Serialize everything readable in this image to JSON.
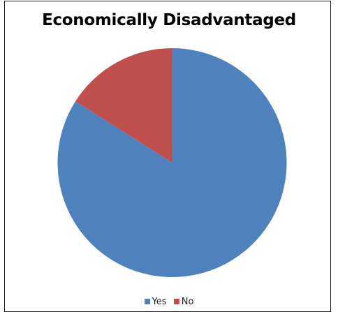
{
  "chart_data": {
    "type": "pie",
    "title": "Economically Disadvantaged",
    "slices": [
      {
        "label": "Yes",
        "value": 84,
        "color": "#4f81bd"
      },
      {
        "label": "No",
        "value": 16,
        "color": "#c0504d"
      }
    ],
    "legend_placement": "bottom"
  }
}
